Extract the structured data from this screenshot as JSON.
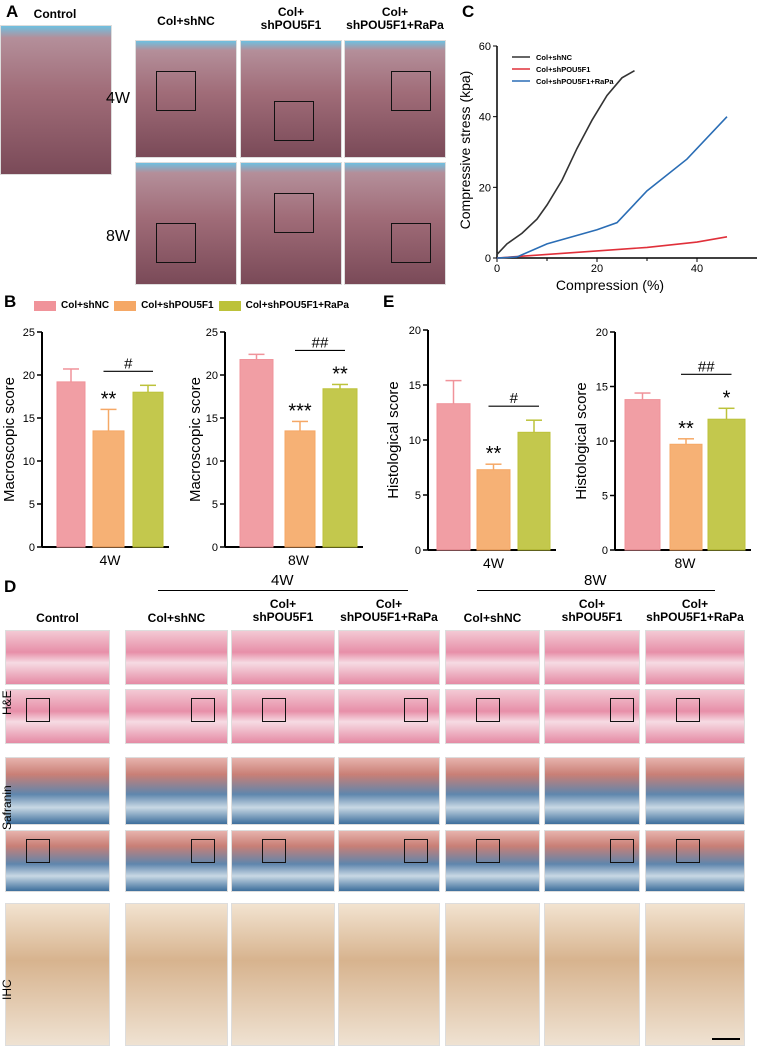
{
  "panels": {
    "A": "A",
    "B": "B",
    "C": "C",
    "D": "D",
    "E": "E"
  },
  "panelA": {
    "control": "Control",
    "groups": [
      "Col+shNC",
      "Col+\nshPOU5F1",
      "Col+\nshPOU5F1+RaPa"
    ],
    "rows": [
      "4W",
      "8W"
    ]
  },
  "legend": [
    "Col+shNC",
    "Col+shPOU5F1",
    "Col+shPOU5F1+RaPa"
  ],
  "colors": {
    "shNC": "#f0939a",
    "shPOU5F1": "#f5a866",
    "RaPa": "#bcc23a",
    "line_shNC": "#333333",
    "line_shPOU5F1": "#e0303a",
    "line_RaPa": "#2a6db5"
  },
  "panelD": {
    "time": [
      "4W",
      "8W"
    ],
    "columns": [
      "Control",
      "Col+shNC",
      "Col+\nshPOU5F1",
      "Col+\nshPOU5F1+RaPa",
      "Col+shNC",
      "Col+\nshPOU5F1",
      "Col+\nshPOU5F1+RaPa"
    ],
    "rows": [
      "H&E",
      "Safranin",
      "IHC"
    ]
  },
  "chart_data": [
    {
      "id": "C",
      "type": "line",
      "xlabel": "Compression (%)",
      "ylabel": "Compressive stress (kpa)",
      "xlim": [
        0,
        50
      ],
      "ylim": [
        0,
        60
      ],
      "xticks": [
        0,
        20,
        40
      ],
      "yticks": [
        0,
        20,
        40,
        60
      ],
      "legend_position": "top-left",
      "series": [
        {
          "name": "Col+shNC",
          "x": [
            0,
            2,
            5,
            8,
            10,
            13,
            16,
            19,
            22,
            25,
            27.5
          ],
          "y": [
            1,
            4,
            7,
            11,
            15,
            22,
            31,
            39,
            46,
            51,
            53
          ]
        },
        {
          "name": "Col+shPOU5F1",
          "x": [
            0,
            5,
            10,
            20,
            30,
            40,
            46
          ],
          "y": [
            0,
            0.5,
            1,
            2,
            3,
            4.5,
            6
          ]
        },
        {
          "name": "Col+shPOU5F1+RaPa",
          "x": [
            0,
            4,
            10,
            20,
            24,
            30,
            38,
            46
          ],
          "y": [
            0,
            0.3,
            4,
            8,
            10,
            19,
            28,
            40
          ]
        }
      ]
    },
    {
      "id": "B-4W",
      "type": "bar",
      "ylabel": "Macroscopic  score",
      "xlabel": "4W",
      "ylim": [
        0,
        25
      ],
      "yticks": [
        0,
        5,
        10,
        15,
        20,
        25
      ],
      "categories": [
        "Col+shNC",
        "Col+shPOU5F1",
        "Col+shPOU5F1+RaPa"
      ],
      "values": [
        19.2,
        13.5,
        18.0
      ],
      "errors": [
        1.5,
        2.5,
        0.8
      ],
      "stars": [
        "",
        "**",
        ""
      ],
      "bracket": "#"
    },
    {
      "id": "B-8W",
      "type": "bar",
      "ylabel": "Macroscopic  score",
      "xlabel": "8W",
      "ylim": [
        0,
        25
      ],
      "yticks": [
        0,
        5,
        10,
        15,
        20,
        25
      ],
      "categories": [
        "Col+shNC",
        "Col+shPOU5F1",
        "Col+shPOU5F1+RaPa"
      ],
      "values": [
        21.8,
        13.5,
        18.4
      ],
      "errors": [
        0.6,
        1.1,
        0.5
      ],
      "stars": [
        "",
        "***",
        "**"
      ],
      "bracket": "##"
    },
    {
      "id": "E-4W",
      "type": "bar",
      "ylabel": "Histological  score",
      "xlabel": "4W",
      "ylim": [
        0,
        20
      ],
      "yticks": [
        0,
        5,
        10,
        15,
        20
      ],
      "categories": [
        "Col+shNC",
        "Col+shPOU5F1",
        "Col+shPOU5F1+RaPa"
      ],
      "values": [
        13.3,
        7.3,
        10.7
      ],
      "errors": [
        2.1,
        0.5,
        1.1
      ],
      "stars": [
        "",
        "**",
        ""
      ],
      "bracket": "#"
    },
    {
      "id": "E-8W",
      "type": "bar",
      "ylabel": "Histological  score",
      "xlabel": "8W",
      "ylim": [
        0,
        20
      ],
      "yticks": [
        0,
        5,
        10,
        15,
        20
      ],
      "categories": [
        "Col+shNC",
        "Col+shPOU5F1",
        "Col+shPOU5F1+RaPa"
      ],
      "values": [
        13.8,
        9.7,
        12.0
      ],
      "errors": [
        0.6,
        0.5,
        1.0
      ],
      "stars": [
        "",
        "**",
        "*"
      ],
      "bracket": "##"
    }
  ]
}
